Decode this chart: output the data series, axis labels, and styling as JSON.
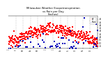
{
  "title": "Milwaukee Weather Evapotranspiration vs Rain per Day (Inches)",
  "title_fontsize": 2.8,
  "background_color": "#ffffff",
  "grid_color": "#888888",
  "ylim": [
    0.0,
    0.55
  ],
  "yticks": [
    0.05,
    0.1,
    0.15,
    0.2,
    0.25,
    0.3,
    0.35,
    0.4,
    0.45,
    0.5
  ],
  "ytick_labels": [
    ".05",
    ".10",
    ".15",
    ".20",
    ".25",
    ".30",
    ".35",
    ".40",
    ".45",
    ".50"
  ],
  "n_points": 365,
  "vline_positions": [
    31,
    59,
    90,
    120,
    151,
    181,
    212,
    243,
    273,
    304,
    334
  ],
  "et_color": "#ff0000",
  "rain_color": "#0000bb",
  "black_color": "#000000",
  "marker_size": 0.8,
  "legend_et": "ET",
  "legend_rain": "Rain",
  "legend_fontsize": 2.2
}
